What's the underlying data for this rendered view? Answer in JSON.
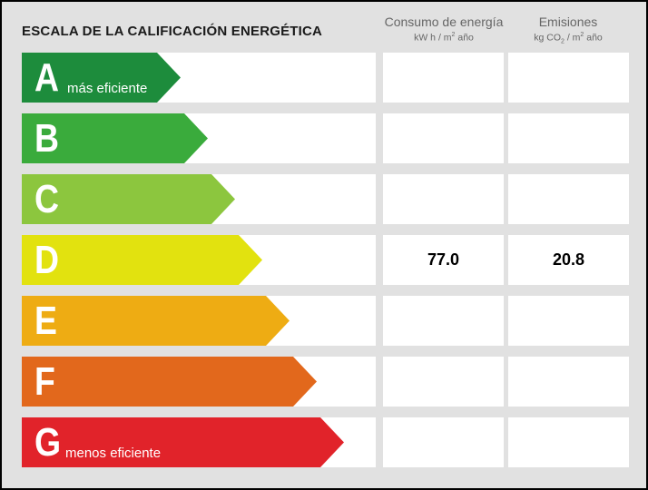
{
  "title": "ESCALA DE LA CALIFICACIÓN ENERGÉTICA",
  "columns": {
    "energy": {
      "label": "Consumo de energía",
      "unit_pre": "kW h / m",
      "unit_sup": "2",
      "unit_post": " año"
    },
    "emissions": {
      "label": "Emisiones",
      "unit_pre": "kg CO",
      "unit_sub": "2",
      "unit_mid": " / m",
      "unit_sup": "2",
      "unit_post": " año"
    }
  },
  "ratings": [
    {
      "letter": "A",
      "note": "más eficiente",
      "color": "#1d8c3c",
      "energy": "",
      "emissions": ""
    },
    {
      "letter": "B",
      "note": "",
      "color": "#3aab3c",
      "energy": "",
      "emissions": ""
    },
    {
      "letter": "C",
      "note": "",
      "color": "#8cc63e",
      "energy": "",
      "emissions": ""
    },
    {
      "letter": "D",
      "note": "",
      "color": "#e2e20f",
      "energy": "77.0",
      "emissions": "20.8"
    },
    {
      "letter": "E",
      "note": "",
      "color": "#eeac13",
      "energy": "",
      "emissions": ""
    },
    {
      "letter": "F",
      "note": "",
      "color": "#e2681c",
      "energy": "",
      "emissions": ""
    },
    {
      "letter": "G",
      "note": "menos eficiente",
      "color": "#e1232a",
      "energy": "",
      "emissions": ""
    }
  ],
  "current_rating": "D"
}
